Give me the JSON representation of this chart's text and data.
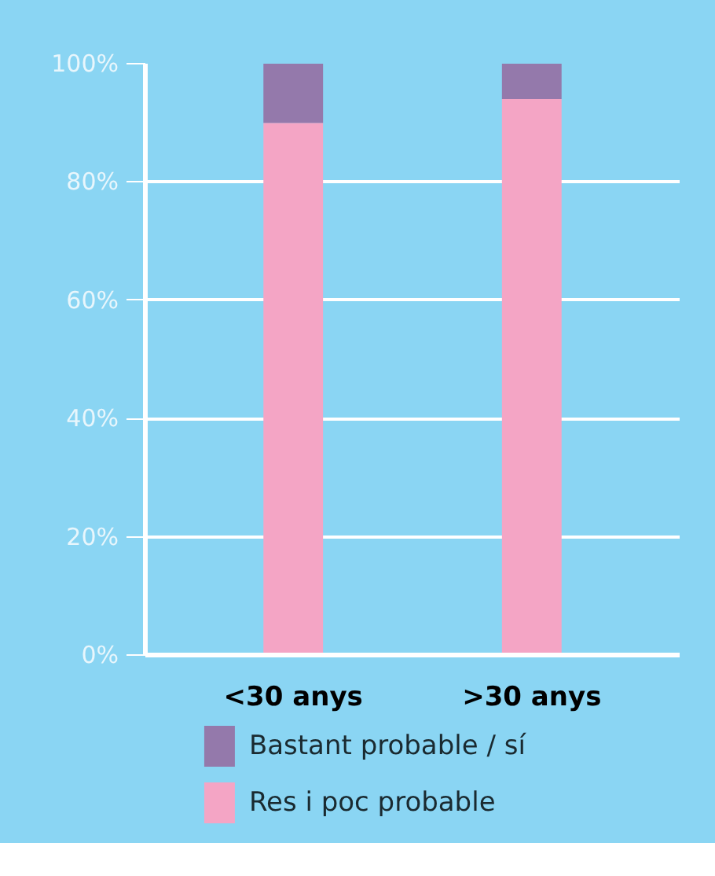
{
  "chart_data": {
    "type": "bar",
    "stacked": true,
    "categories": [
      "<30 anys",
      ">30 anys"
    ],
    "series": [
      {
        "name": "Res i poc probable",
        "color": "#f4a5c5",
        "values": [
          90,
          94
        ]
      },
      {
        "name": "Bastant probable / sí",
        "color": "#9479ab",
        "values": [
          10,
          6
        ]
      }
    ],
    "ylim": [
      0,
      100
    ],
    "yticks": [
      {
        "value": 0,
        "label": "0%"
      },
      {
        "value": 20,
        "label": "20%"
      },
      {
        "value": 40,
        "label": "40%"
      },
      {
        "value": 60,
        "label": "60%"
      },
      {
        "value": 80,
        "label": "80%"
      },
      {
        "value": 100,
        "label": "100%"
      }
    ],
    "grid": "y",
    "legend": "bottom"
  }
}
